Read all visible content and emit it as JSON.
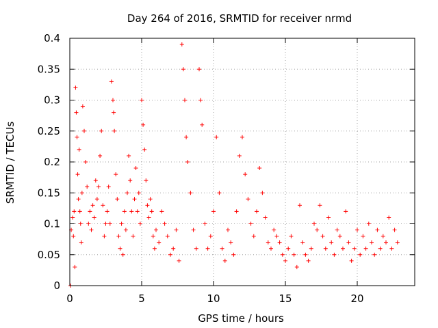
{
  "chart_data": {
    "type": "scatter",
    "title": "Day 264 of 2016, SRMTID for receiver nrmd",
    "xlabel": "GPS time / hours",
    "ylabel": "SRMTID / TECUs",
    "xlim": [
      0,
      24
    ],
    "ylim": [
      0,
      0.4
    ],
    "xticks": [
      0,
      5,
      10,
      15,
      20
    ],
    "yticks": [
      0,
      0.05,
      0.1,
      0.15,
      0.2,
      0.25,
      0.3,
      0.35,
      0.4
    ],
    "ytick_labels": [
      "0",
      "0.05",
      "0.1",
      "0.15",
      "0.2",
      "0.25",
      "0.3",
      "0.35",
      "0.4"
    ],
    "grid": true,
    "marker": "+",
    "series_color": "#ff0000",
    "series": [
      {
        "name": "SRMTID",
        "x": [
          0.05,
          0.1,
          0.2,
          0.25,
          0.3,
          0.35,
          0.4,
          0.45,
          0.5,
          0.55,
          0.6,
          0.65,
          0.7,
          0.75,
          0.8,
          0.85,
          0.9,
          1.0,
          1.1,
          1.2,
          1.3,
          1.4,
          1.5,
          1.6,
          1.7,
          1.8,
          1.9,
          2.0,
          2.1,
          2.2,
          2.3,
          2.4,
          2.5,
          2.6,
          2.7,
          2.8,
          2.9,
          3.0,
          3.05,
          3.1,
          3.2,
          3.3,
          3.4,
          3.5,
          3.6,
          3.7,
          3.8,
          3.9,
          4.0,
          4.1,
          4.2,
          4.3,
          4.4,
          4.5,
          4.6,
          4.7,
          4.8,
          4.9,
          5.0,
          5.1,
          5.2,
          5.3,
          5.4,
          5.5,
          5.6,
          5.7,
          5.8,
          5.9,
          6.0,
          6.2,
          6.4,
          6.6,
          6.8,
          7.0,
          7.2,
          7.4,
          7.6,
          7.8,
          7.9,
          8.0,
          8.1,
          8.2,
          8.4,
          8.6,
          8.8,
          9.0,
          9.1,
          9.2,
          9.4,
          9.6,
          9.8,
          10.0,
          10.2,
          10.4,
          10.6,
          10.8,
          11.0,
          11.2,
          11.4,
          11.6,
          11.8,
          12.0,
          12.2,
          12.4,
          12.6,
          12.8,
          13.0,
          13.2,
          13.4,
          13.6,
          13.8,
          14.0,
          14.2,
          14.4,
          14.6,
          14.8,
          15.0,
          15.2,
          15.4,
          15.6,
          15.8,
          16.0,
          16.2,
          16.4,
          16.6,
          16.8,
          17.0,
          17.2,
          17.4,
          17.6,
          17.8,
          18.0,
          18.2,
          18.4,
          18.6,
          18.8,
          19.0,
          19.2,
          19.4,
          19.6,
          19.8,
          20.0,
          20.2,
          20.4,
          20.6,
          20.8,
          21.0,
          21.2,
          21.4,
          21.6,
          21.8,
          22.0,
          22.2,
          22.4,
          22.6,
          22.8
        ],
        "y": [
          0.0,
          0.09,
          0.11,
          0.08,
          0.12,
          0.03,
          0.32,
          0.28,
          0.24,
          0.18,
          0.14,
          0.22,
          0.12,
          0.1,
          0.07,
          0.15,
          0.29,
          0.25,
          0.2,
          0.16,
          0.1,
          0.12,
          0.09,
          0.13,
          0.11,
          0.17,
          0.14,
          0.16,
          0.21,
          0.25,
          0.13,
          0.08,
          0.1,
          0.12,
          0.16,
          0.1,
          0.33,
          0.3,
          0.28,
          0.25,
          0.18,
          0.14,
          0.08,
          0.06,
          0.1,
          0.05,
          0.12,
          0.09,
          0.15,
          0.21,
          0.17,
          0.12,
          0.08,
          0.14,
          0.19,
          0.12,
          0.15,
          0.1,
          0.3,
          0.26,
          0.22,
          0.17,
          0.13,
          0.11,
          0.14,
          0.12,
          0.08,
          0.06,
          0.09,
          0.07,
          0.12,
          0.1,
          0.08,
          0.05,
          0.06,
          0.09,
          0.04,
          0.39,
          0.35,
          0.3,
          0.24,
          0.2,
          0.15,
          0.09,
          0.06,
          0.35,
          0.3,
          0.26,
          0.1,
          0.06,
          0.08,
          0.12,
          0.24,
          0.15,
          0.06,
          0.04,
          0.09,
          0.07,
          0.05,
          0.12,
          0.21,
          0.24,
          0.18,
          0.14,
          0.1,
          0.08,
          0.12,
          0.19,
          0.15,
          0.11,
          0.07,
          0.06,
          0.09,
          0.08,
          0.07,
          0.05,
          0.04,
          0.06,
          0.08,
          0.05,
          0.03,
          0.13,
          0.07,
          0.05,
          0.04,
          0.06,
          0.1,
          0.09,
          0.13,
          0.08,
          0.06,
          0.11,
          0.07,
          0.05,
          0.09,
          0.08,
          0.06,
          0.12,
          0.07,
          0.04,
          0.06,
          0.09,
          0.05,
          0.08,
          0.06,
          0.1,
          0.07,
          0.05,
          0.09,
          0.06,
          0.08,
          0.07,
          0.11,
          0.06,
          0.09,
          0.07
        ]
      }
    ]
  }
}
